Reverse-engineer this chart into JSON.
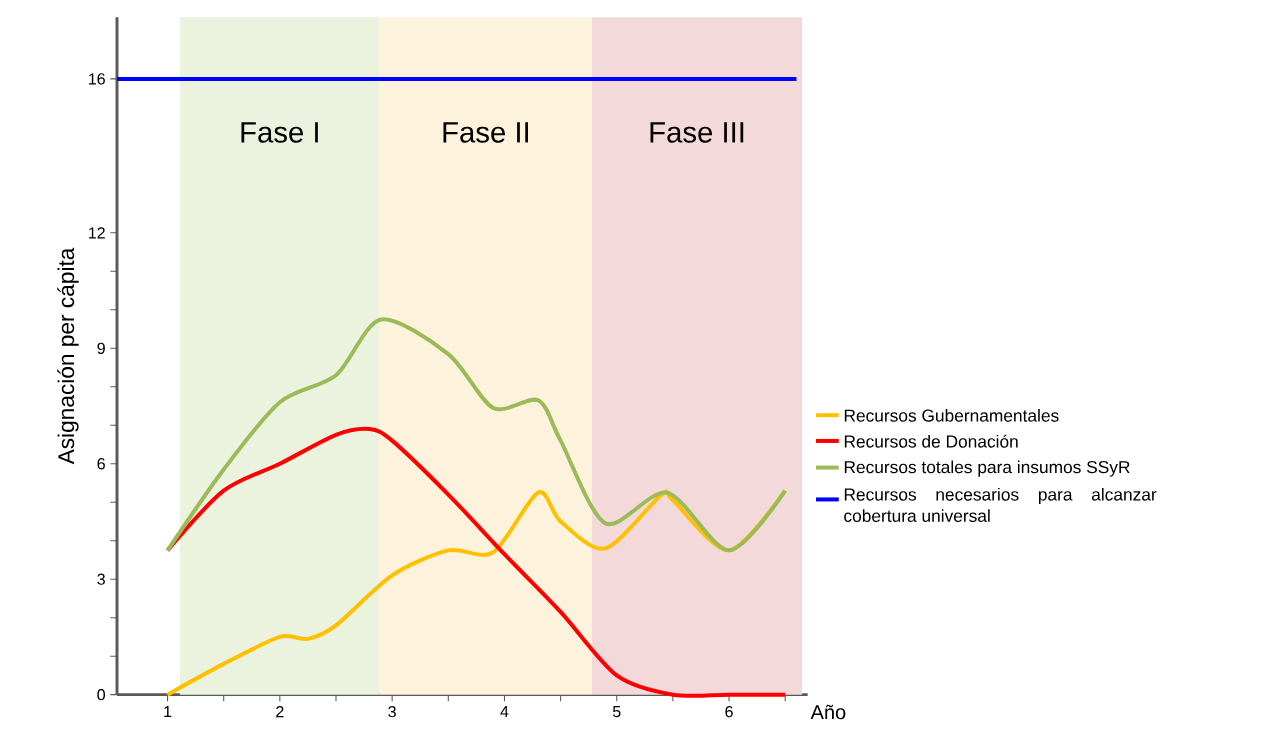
{
  "chart_data": {
    "type": "line",
    "xlabel": "Año",
    "ylabel": "Asignación per cápita",
    "xlim": [
      0.55,
      6.7
    ],
    "ylim": [
      0,
      17.6
    ],
    "xticks": [
      1,
      {
        "value": 1.5,
        "label": null
      },
      2,
      {
        "value": 2.5,
        "label": null
      },
      3,
      {
        "value": 3.5,
        "label": null
      },
      4,
      {
        "value": 4.5,
        "label": null
      },
      5,
      {
        "value": 5.5,
        "label": null
      },
      6,
      {
        "value": 6.5,
        "label": null
      }
    ],
    "yticks": [
      0,
      {
        "value": 1,
        "label": null
      },
      {
        "value": 2,
        "label": null
      },
      3,
      {
        "value": 4,
        "label": null
      },
      {
        "value": 5,
        "label": null
      },
      6,
      {
        "value": 7,
        "label": null
      },
      {
        "value": 8,
        "label": null
      },
      9,
      {
        "value": 10,
        "label": null
      },
      {
        "value": 11,
        "label": null
      },
      12,
      16
    ],
    "series": [
      {
        "name": "Recursos Gubernamentales",
        "color": "#ffc000",
        "x": [
          1,
          1.5,
          2,
          2.25,
          2.5,
          3,
          3.5,
          3.9,
          4.3,
          4.5,
          4.9,
          5.4,
          5.5,
          6,
          6.5
        ],
        "values": [
          0,
          0.8,
          1.5,
          1.45,
          1.8,
          3.1,
          3.75,
          3.7,
          5.25,
          4.5,
          3.8,
          5.2,
          5.05,
          3.75,
          5.3
        ]
      },
      {
        "name": "Recursos de Donación",
        "color": "#ff0000",
        "x": [
          1,
          1.5,
          2,
          2.5,
          2.8,
          3,
          3.5,
          4,
          4.5,
          5,
          5.5,
          6,
          6.5
        ],
        "values": [
          3.75,
          5.3,
          6.0,
          6.75,
          6.9,
          6.6,
          5.2,
          3.65,
          2.15,
          0.5,
          0,
          0,
          0
        ]
      },
      {
        "name": "Recursos totales para insumos SSyR",
        "color": "#9bbb59",
        "x": [
          1,
          1.5,
          2,
          2.5,
          2.9,
          3.5,
          3.9,
          4.3,
          4.5,
          4.9,
          5.45,
          6,
          6.5
        ],
        "values": [
          3.75,
          5.85,
          7.6,
          8.3,
          9.75,
          8.85,
          7.45,
          7.65,
          6.6,
          4.45,
          5.25,
          3.75,
          5.3
        ]
      },
      {
        "name": "Recursos necesarios para alcanzar cobertura universal",
        "color": "#0000ff",
        "x": [
          0.55,
          6.6
        ],
        "values": [
          16,
          16
        ]
      }
    ],
    "bands": [
      {
        "axis": "x",
        "from": 1.11,
        "to": 2.89,
        "label": "Fase I",
        "color": "#ebf3df"
      },
      {
        "axis": "x",
        "from": 2.89,
        "to": 4.78,
        "label": "Fase II",
        "color": "#fdf3dc"
      },
      {
        "axis": "x",
        "from": 4.78,
        "to": 6.65,
        "label": "Fase III",
        "color": "#f3d9da"
      }
    ],
    "legend": "right",
    "grid": false,
    "marker": "none",
    "line_style": "solid"
  }
}
